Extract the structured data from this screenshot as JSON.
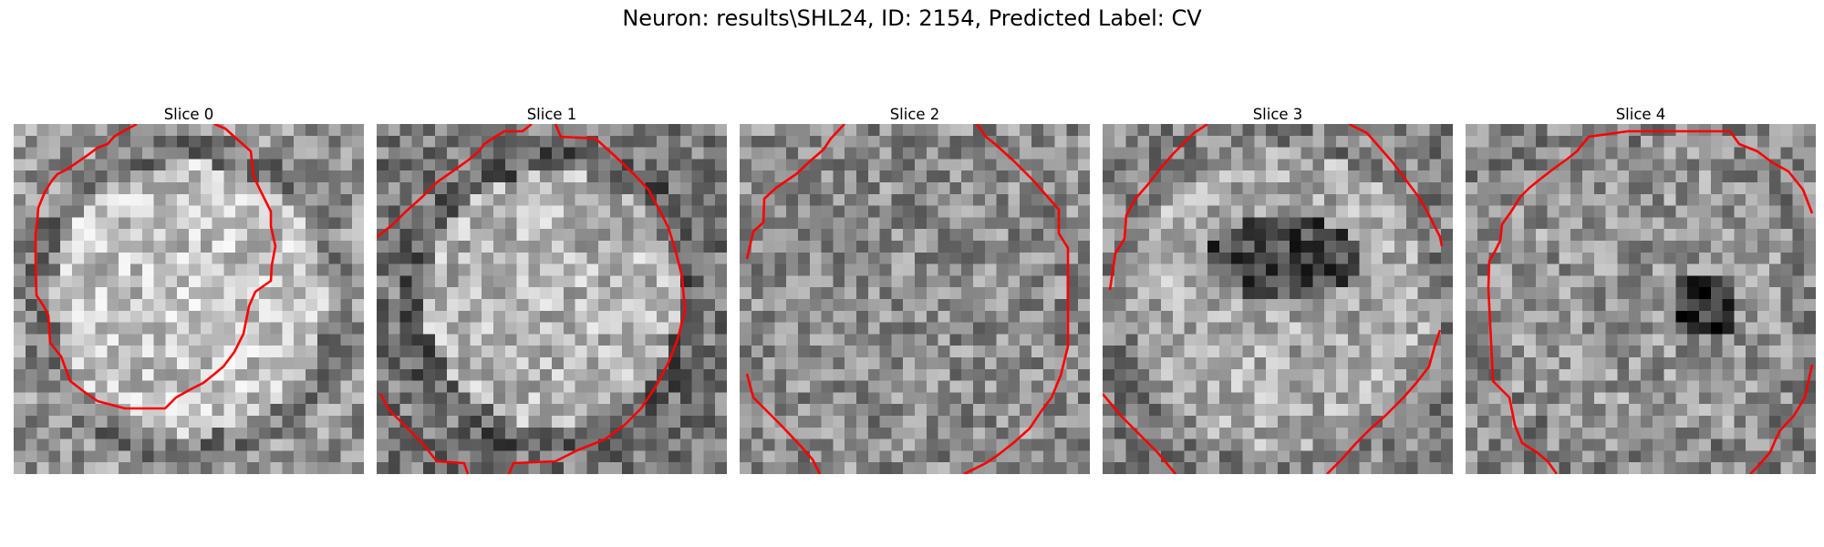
{
  "figure": {
    "suptitle": "Neuron: results\\SHL24, ID: 2154, Predicted Label: CV",
    "contour_color": "#ff0000",
    "colormap": "gray",
    "grid_cells": 30,
    "panels": [
      {
        "title": "Slice 0",
        "style": "bright-disk"
      },
      {
        "title": "Slice 1",
        "style": "bright-disk-dark-ring"
      },
      {
        "title": "Slice 2",
        "style": "noisy-mid"
      },
      {
        "title": "Slice 3",
        "style": "dark-center"
      },
      {
        "title": "Slice 4",
        "style": "dark-spot"
      }
    ]
  }
}
